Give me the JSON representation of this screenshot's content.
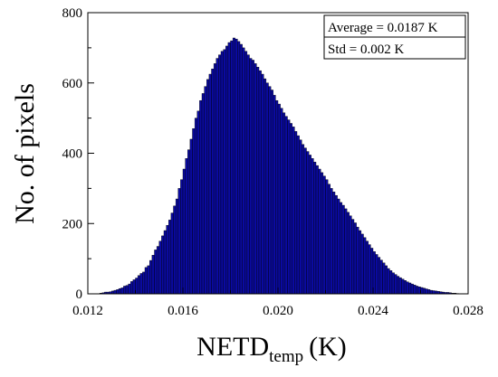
{
  "chart_data": {
    "type": "bar",
    "title": "",
    "xlabel": "NETD",
    "xlabel_subscript": "temp",
    "xlabel_unit": "(K)",
    "ylabel": "No. of pixels",
    "xlim": [
      0.012,
      0.028
    ],
    "ylim": [
      0,
      800
    ],
    "xticks": [
      "0.012",
      "0.016",
      "0.020",
      "0.024",
      "0.028"
    ],
    "yticks": [
      "0",
      "200",
      "400",
      "600",
      "800"
    ],
    "bin_start": 0.0125,
    "bin_width": 0.0001,
    "values": [
      2,
      3,
      5,
      5,
      6,
      8,
      10,
      12,
      15,
      17,
      22,
      24,
      28,
      35,
      40,
      45,
      52,
      58,
      62,
      75,
      80,
      95,
      110,
      125,
      135,
      150,
      165,
      180,
      195,
      210,
      230,
      250,
      270,
      300,
      325,
      355,
      385,
      410,
      440,
      470,
      500,
      520,
      550,
      570,
      590,
      610,
      625,
      640,
      655,
      670,
      680,
      690,
      695,
      705,
      715,
      720,
      728,
      725,
      718,
      710,
      700,
      690,
      680,
      670,
      665,
      655,
      645,
      635,
      625,
      612,
      600,
      590,
      580,
      565,
      550,
      540,
      528,
      515,
      505,
      495,
      485,
      475,
      462,
      450,
      438,
      425,
      415,
      405,
      395,
      385,
      375,
      365,
      355,
      345,
      335,
      325,
      312,
      300,
      290,
      280,
      270,
      260,
      252,
      242,
      232,
      222,
      212,
      202,
      190,
      180,
      170,
      160,
      150,
      140,
      130,
      120,
      112,
      104,
      96,
      88,
      80,
      72,
      66,
      60,
      55,
      50,
      46,
      42,
      38,
      34,
      31,
      28,
      25,
      22,
      20,
      18,
      16,
      14,
      12,
      10,
      9,
      8,
      7,
      6,
      5,
      4,
      4,
      3,
      2,
      2,
      1
    ],
    "bar_color": "#0a0aa0",
    "bar_edge_color": "#000000",
    "grid": false,
    "legend_position": "top-right",
    "legend_lines": [
      "Average = 0.0187 K",
      "Std = 0.002 K"
    ]
  }
}
